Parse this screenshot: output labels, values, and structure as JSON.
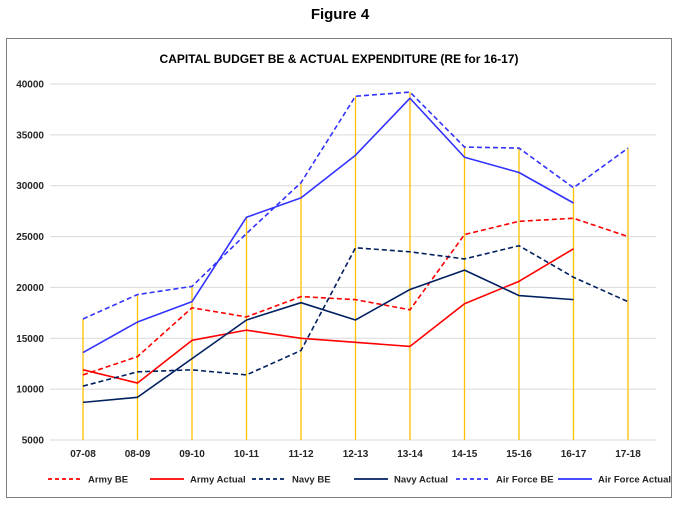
{
  "figure_label": "Figure 4",
  "chart_data": {
    "type": "line",
    "title": "CAPITAL BUDGET BE & ACTUAL EXPENDITURE (RE for 16-17)",
    "xlabel": "",
    "ylabel": "",
    "ylim": [
      5000,
      40000
    ],
    "yticks": [
      5000,
      10000,
      15000,
      20000,
      25000,
      30000,
      35000,
      40000
    ],
    "grid": "horizontal",
    "legend_position": "bottom",
    "categories": [
      "07-08",
      "08-09",
      "09-10",
      "10-11",
      "11-12",
      "12-13",
      "13-14",
      "14-15",
      "15-16",
      "16-17",
      "17-18"
    ],
    "series": [
      {
        "name": "Army BE",
        "color": "#ff0000",
        "dash": "dashed",
        "values": [
          11400,
          13200,
          18000,
          17100,
          19100,
          18800,
          17800,
          25200,
          26500,
          26800,
          25000
        ]
      },
      {
        "name": "Army Actual",
        "color": "#ff0000",
        "dash": "solid",
        "values": [
          11900,
          10600,
          14800,
          15800,
          15000,
          14600,
          14200,
          18400,
          20600,
          23800,
          null
        ]
      },
      {
        "name": "Navy BE",
        "color": "#002060",
        "dash": "dashed",
        "values": [
          10300,
          11700,
          11900,
          11400,
          13800,
          23900,
          23500,
          22800,
          24100,
          21000,
          18600
        ]
      },
      {
        "name": "Navy Actual",
        "color": "#002060",
        "dash": "solid",
        "values": [
          8700,
          9200,
          13000,
          16800,
          18500,
          16800,
          19800,
          21700,
          19200,
          18800,
          null
        ]
      },
      {
        "name": "Air Force BE",
        "color": "#3333ff",
        "dash": "dashed",
        "values": [
          16900,
          19300,
          20100,
          25300,
          30300,
          38800,
          39200,
          33800,
          33700,
          29800,
          33700
        ]
      },
      {
        "name": "Air Force Actual",
        "color": "#3333ff",
        "dash": "solid",
        "values": [
          13600,
          16600,
          18600,
          26900,
          28800,
          33000,
          38600,
          32800,
          31300,
          28300,
          null
        ]
      }
    ],
    "drop_lines_color": "#ffc000"
  }
}
